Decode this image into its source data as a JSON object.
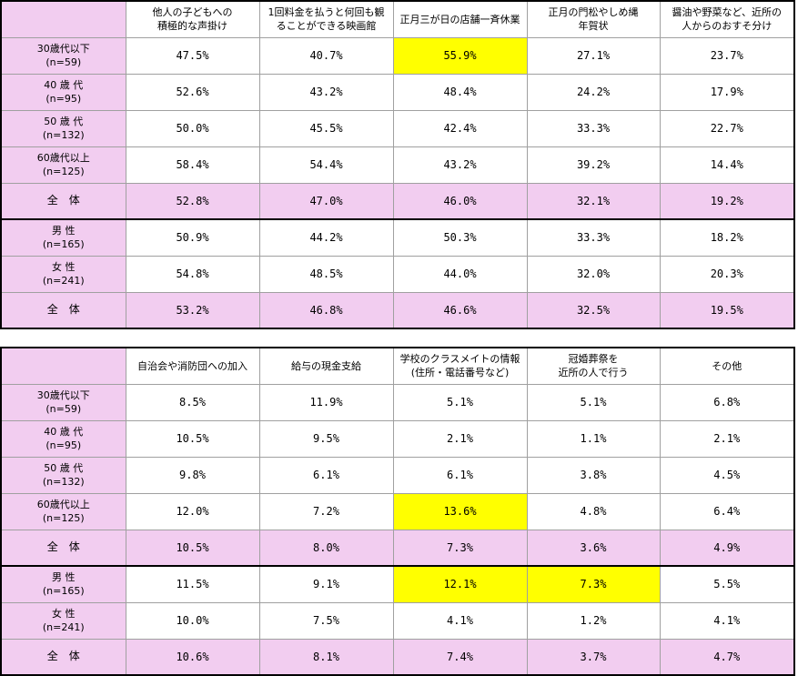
{
  "chart_data": [
    {
      "type": "table",
      "columns": [
        "他人の子どもへの\n積極的な声掛け",
        "1回料金を払うと何回も観\nることができる映画館",
        "正月三が日の店舗一斉休業",
        "正月の門松やしめ縄\n年賀状",
        "醤油や野菜など、近所の\n人からのおすそ分け"
      ],
      "rows": [
        {
          "label": "30歳代以下\n(n=59)",
          "values": [
            "47.5%",
            "40.7%",
            "55.9%",
            "27.1%",
            "23.7%"
          ],
          "highlight": [
            2
          ],
          "total": false,
          "group_start": false
        },
        {
          "label": "40 歳 代\n(n=95)",
          "values": [
            "52.6%",
            "43.2%",
            "48.4%",
            "24.2%",
            "17.9%"
          ],
          "highlight": [],
          "total": false,
          "group_start": false
        },
        {
          "label": "50 歳 代\n(n=132)",
          "values": [
            "50.0%",
            "45.5%",
            "42.4%",
            "33.3%",
            "22.7%"
          ],
          "highlight": [],
          "total": false,
          "group_start": false
        },
        {
          "label": "60歳代以上\n(n=125)",
          "values": [
            "58.4%",
            "54.4%",
            "43.2%",
            "39.2%",
            "14.4%"
          ],
          "highlight": [],
          "total": false,
          "group_start": false
        },
        {
          "label": "全　体",
          "values": [
            "52.8%",
            "47.0%",
            "46.0%",
            "32.1%",
            "19.2%"
          ],
          "highlight": [],
          "total": true,
          "group_start": false
        },
        {
          "label": "男 性\n(n=165)",
          "values": [
            "50.9%",
            "44.2%",
            "50.3%",
            "33.3%",
            "18.2%"
          ],
          "highlight": [],
          "total": false,
          "group_start": true
        },
        {
          "label": "女 性\n(n=241)",
          "values": [
            "54.8%",
            "48.5%",
            "44.0%",
            "32.0%",
            "20.3%"
          ],
          "highlight": [],
          "total": false,
          "group_start": false
        },
        {
          "label": "全　体",
          "values": [
            "53.2%",
            "46.8%",
            "46.6%",
            "32.5%",
            "19.5%"
          ],
          "highlight": [],
          "total": true,
          "group_start": false
        }
      ]
    },
    {
      "type": "table",
      "columns": [
        "自治会や消防団への加入",
        "給与の現金支給",
        "学校のクラスメイトの情報\n(住所・電話番号など)",
        "冠婚葬祭を\n近所の人で行う",
        "その他"
      ],
      "rows": [
        {
          "label": "30歳代以下\n(n=59)",
          "values": [
            "8.5%",
            "11.9%",
            "5.1%",
            "5.1%",
            "6.8%"
          ],
          "highlight": [],
          "total": false,
          "group_start": false
        },
        {
          "label": "40 歳 代\n(n=95)",
          "values": [
            "10.5%",
            "9.5%",
            "2.1%",
            "1.1%",
            "2.1%"
          ],
          "highlight": [],
          "total": false,
          "group_start": false
        },
        {
          "label": "50 歳 代\n(n=132)",
          "values": [
            "9.8%",
            "6.1%",
            "6.1%",
            "3.8%",
            "4.5%"
          ],
          "highlight": [],
          "total": false,
          "group_start": false
        },
        {
          "label": "60歳代以上\n(n=125)",
          "values": [
            "12.0%",
            "7.2%",
            "13.6%",
            "4.8%",
            "6.4%"
          ],
          "highlight": [
            2
          ],
          "total": false,
          "group_start": false
        },
        {
          "label": "全　体",
          "values": [
            "10.5%",
            "8.0%",
            "7.3%",
            "3.6%",
            "4.9%"
          ],
          "highlight": [],
          "total": true,
          "group_start": false
        },
        {
          "label": "男 性\n(n=165)",
          "values": [
            "11.5%",
            "9.1%",
            "12.1%",
            "7.3%",
            "5.5%"
          ],
          "highlight": [
            2,
            3
          ],
          "total": false,
          "group_start": true
        },
        {
          "label": "女 性\n(n=241)",
          "values": [
            "10.0%",
            "7.5%",
            "4.1%",
            "1.2%",
            "4.1%"
          ],
          "highlight": [],
          "total": false,
          "group_start": false
        },
        {
          "label": "全　体",
          "values": [
            "10.6%",
            "8.1%",
            "7.4%",
            "3.7%",
            "4.7%"
          ],
          "highlight": [],
          "total": true,
          "group_start": false
        }
      ]
    }
  ],
  "colors": {
    "label_bg": "#f2cdf0",
    "highlight": "#ffff00",
    "border": "#000000"
  }
}
